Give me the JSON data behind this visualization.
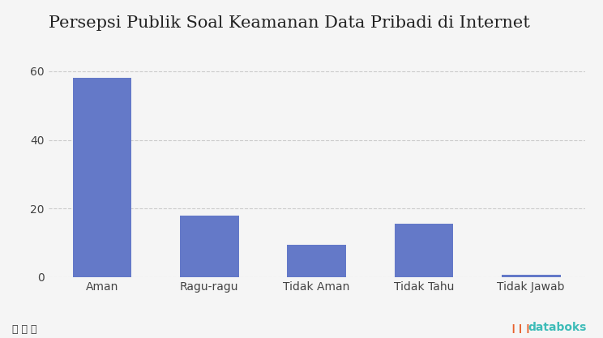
{
  "title": "Persepsi Publik Soal Keamanan Data Pribadi di Internet",
  "categories": [
    "Aman",
    "Ragu-ragu",
    "Tidak Aman",
    "Tidak Tahu",
    "Tidak Jawab"
  ],
  "values": [
    58,
    18,
    9.5,
    15.5,
    0.8
  ],
  "bar_color": "#6479c8",
  "background_color": "#f5f5f5",
  "ylim": [
    0,
    65
  ],
  "yticks": [
    0,
    20,
    40,
    60
  ],
  "title_fontsize": 15,
  "tick_fontsize": 10,
  "grid_color": "#cccccc",
  "brand_text": "databoks",
  "brand_color": "#3dbcb8",
  "brand_icon_color": "#e8612c"
}
